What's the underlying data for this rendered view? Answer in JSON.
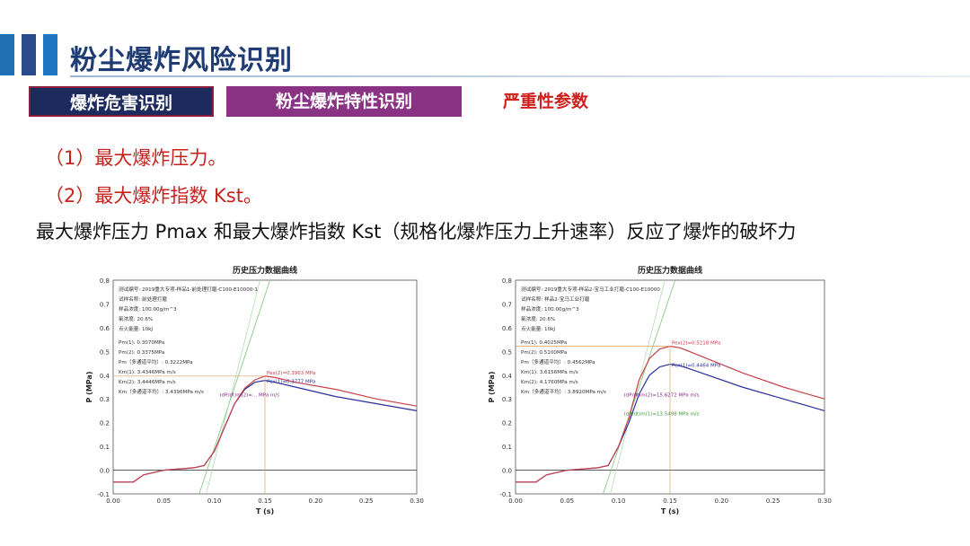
{
  "title": "粉尘爆炸风险识别",
  "tabs": [
    {
      "label": "爆炸危害识别",
      "bg": "#1c2a5e"
    },
    {
      "label": "粉尘爆炸特性识别",
      "bg": "#8a3385"
    },
    {
      "label": "严重性参数",
      "color": "#d0201c"
    }
  ],
  "items": [
    "（1）最大爆炸压力。",
    "（2）最大爆炸指数 Kst。"
  ],
  "summary": "最大爆炸压力 Pmax 和最大爆炸指数 Kst（规格化爆炸压力上升速率）反应了爆炸的破坏力",
  "chart_data": [
    {
      "type": "line",
      "title": "历史压力数据曲线",
      "xlabel": "T (s)",
      "ylabel": "P (MPa)",
      "xlim": [
        0,
        0.3
      ],
      "ylim": [
        -0.1,
        0.8
      ],
      "xticks": [
        "0.00",
        "0.05",
        "0.10",
        "0.15",
        "0.20",
        "0.25",
        "0.30"
      ],
      "yticks": [
        "-0.1",
        "0.0",
        "0.1",
        "0.2",
        "0.3",
        "0.4",
        "0.5",
        "0.6",
        "0.7",
        "0.8"
      ],
      "info": [
        "测试编号: 2019重大专项-样品1-前处理打磨-C100-E10000-1",
        "试样名称: 前处理打磨",
        "样品浓度: 100.00g/m^3",
        "氧浓度: 20.6%",
        "点火能量: 10kJ",
        "Pm(1): 0.3070MPa",
        "Pm(2): 0.3375MPa",
        "Pm（多通道平均）: 0.3222MPa",
        "Km(1): 3.4346MPa m/s",
        "Km(2): 3.4446MPa m/s",
        "Km（多通道平均）: 3.4396MPa m/s"
      ],
      "annotations": [
        "Pex(2)=0.3963 MPa",
        "Pex(1)=0.3777 MPa",
        "(dP/dt)m(2)=... MPa m/s"
      ],
      "series": [
        {
          "color": "#2b2f9a",
          "x": [
            0,
            0.02,
            0.03,
            0.05,
            0.08,
            0.09,
            0.095,
            0.1,
            0.11,
            0.12,
            0.13,
            0.14,
            0.15,
            0.16,
            0.18,
            0.22,
            0.26,
            0.3
          ],
          "y": [
            -0.05,
            -0.05,
            -0.02,
            0.0,
            0.01,
            0.02,
            0.05,
            0.08,
            0.18,
            0.28,
            0.34,
            0.37,
            0.378,
            0.37,
            0.35,
            0.31,
            0.28,
            0.25
          ]
        },
        {
          "color": "#c8404a",
          "x": [
            0,
            0.02,
            0.03,
            0.05,
            0.08,
            0.09,
            0.095,
            0.1,
            0.11,
            0.12,
            0.13,
            0.14,
            0.15,
            0.16,
            0.18,
            0.22,
            0.26,
            0.3
          ],
          "y": [
            -0.05,
            -0.05,
            -0.02,
            0.0,
            0.01,
            0.02,
            0.05,
            0.08,
            0.18,
            0.28,
            0.345,
            0.38,
            0.396,
            0.39,
            0.37,
            0.34,
            0.3,
            0.27
          ]
        }
      ]
    },
    {
      "type": "line",
      "title": "历史压力数据曲线",
      "xlabel": "T (s)",
      "ylabel": "P (MPa)",
      "xlim": [
        0,
        0.3
      ],
      "ylim": [
        -0.1,
        0.8
      ],
      "xticks": [
        "0.00",
        "0.05",
        "0.10",
        "0.15",
        "0.20",
        "0.25",
        "0.30"
      ],
      "yticks": [
        "-0.1",
        "0.0",
        "0.1",
        "0.2",
        "0.3",
        "0.4",
        "0.5",
        "0.6",
        "0.7",
        "0.8"
      ],
      "info": [
        "测试编号: 2019重大专项-样品2-宝马工业打磨-C100-E10000",
        "试样名称: 样品2-宝马工业打磨",
        "样品浓度: 100.00g/m^3",
        "氧浓度: 20.6%",
        "点火能量: 10kJ",
        "Pm(1): 0.4025MPa",
        "Pm(2): 0.5100MPa",
        "Pm（多通道平均）: 0.4562MPa",
        "Km(1): 3.6156MPa m/s",
        "Km(2): 4.1760MPa m/s",
        "Km（多通道平均）: 3.8920MPa m/s"
      ],
      "annotations": [
        "Pex(2)=0.5218 MPa",
        "Pex(1)=0.4464 MPa",
        "(dP/dt)m(2)=15.6272 MPa m/s",
        "(dP/dt)m(1)=13.5498 MPa m/s"
      ],
      "series": [
        {
          "color": "#2b2f9a",
          "x": [
            0,
            0.02,
            0.03,
            0.05,
            0.08,
            0.09,
            0.1,
            0.11,
            0.12,
            0.13,
            0.14,
            0.15,
            0.16,
            0.18,
            0.22,
            0.26,
            0.3
          ],
          "y": [
            -0.05,
            -0.05,
            -0.02,
            0.0,
            0.01,
            0.02,
            0.1,
            0.2,
            0.32,
            0.4,
            0.435,
            0.446,
            0.44,
            0.41,
            0.35,
            0.3,
            0.25
          ]
        },
        {
          "color": "#c8404a",
          "x": [
            0,
            0.02,
            0.03,
            0.05,
            0.08,
            0.09,
            0.1,
            0.11,
            0.12,
            0.13,
            0.14,
            0.15,
            0.16,
            0.18,
            0.22,
            0.26,
            0.3
          ],
          "y": [
            -0.05,
            -0.05,
            -0.02,
            0.0,
            0.01,
            0.02,
            0.1,
            0.22,
            0.38,
            0.47,
            0.51,
            0.522,
            0.515,
            0.48,
            0.41,
            0.35,
            0.3
          ]
        }
      ]
    }
  ]
}
